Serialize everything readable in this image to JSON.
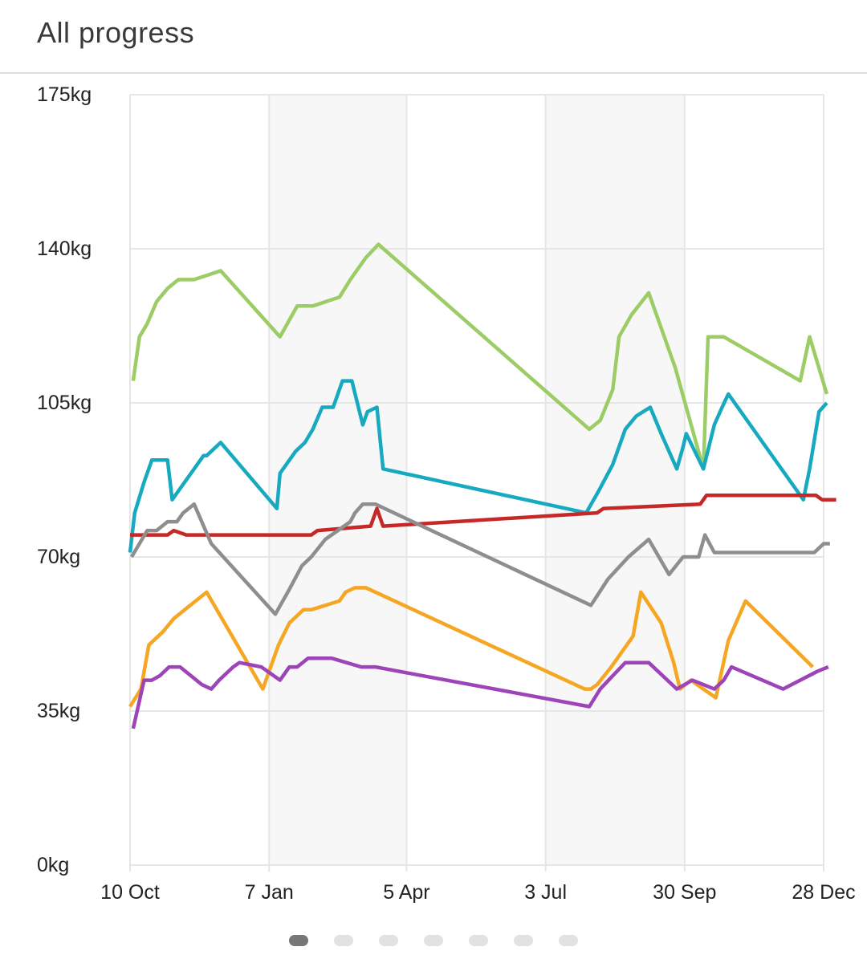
{
  "header": {
    "title": "All progress"
  },
  "chart_data": {
    "type": "line",
    "ylim": [
      0,
      175
    ],
    "y_ticks": [
      {
        "value": 0,
        "label": "0kg"
      },
      {
        "value": 35,
        "label": "35kg"
      },
      {
        "value": 70,
        "label": "70kg"
      },
      {
        "value": 105,
        "label": "105kg"
      },
      {
        "value": 140,
        "label": "140kg"
      },
      {
        "value": 175,
        "label": "175kg"
      }
    ],
    "xlim": [
      "2021-10-10",
      "2022-12-28"
    ],
    "x_ticks": [
      {
        "value": "2021-10-10",
        "label": "10 Oct"
      },
      {
        "value": "2022-01-07",
        "label": "7 Jan"
      },
      {
        "value": "2022-04-05",
        "label": "5 Apr"
      },
      {
        "value": "2022-07-03",
        "label": "3 Jul"
      },
      {
        "value": "2022-09-30",
        "label": "30 Sep"
      },
      {
        "value": "2022-12-28",
        "label": "28 Dec"
      }
    ],
    "shaded_bands": [
      [
        "2022-01-07",
        "2022-04-05"
      ],
      [
        "2022-07-03",
        "2022-09-30"
      ]
    ],
    "grid": true,
    "series": [
      {
        "color": "#9ccc65",
        "x": [
          "2021-10-12",
          "2021-10-16",
          "2021-10-21",
          "2021-10-27",
          "2021-11-03",
          "2021-11-10",
          "2021-11-20",
          "2021-12-07",
          "2022-01-14",
          "2022-01-25",
          "2022-02-04",
          "2022-02-21",
          "2022-02-28",
          "2022-03-10",
          "2022-03-18",
          "2022-07-31",
          "2022-08-07",
          "2022-08-15",
          "2022-08-19",
          "2022-08-27",
          "2022-09-07",
          "2022-09-24",
          "2022-10-12",
          "2022-10-15",
          "2022-10-25",
          "2022-12-13",
          "2022-12-19",
          "2022-12-30"
        ],
        "y": [
          110,
          120,
          123,
          128,
          131,
          133,
          133,
          135,
          120,
          127,
          127,
          129,
          133,
          138,
          141,
          99,
          101,
          108,
          120,
          125,
          130,
          113,
          90,
          120,
          120,
          110,
          120,
          107
        ]
      },
      {
        "color": "#17a9c0",
        "x": [
          "2021-10-10",
          "2021-10-13",
          "2021-10-19",
          "2021-10-24",
          "2021-11-03",
          "2021-11-06",
          "2021-11-12",
          "2021-11-20",
          "2021-11-26",
          "2021-11-28",
          "2021-12-07",
          "2022-01-12",
          "2022-01-14",
          "2022-01-24",
          "2022-01-30",
          "2022-02-04",
          "2022-02-10",
          "2022-02-17",
          "2022-02-23",
          "2022-03-01",
          "2022-03-08",
          "2022-03-11",
          "2022-03-17",
          "2022-03-21",
          "2022-07-29",
          "2022-08-06",
          "2022-08-15",
          "2022-08-19",
          "2022-08-23",
          "2022-08-30",
          "2022-09-08",
          "2022-09-15",
          "2022-09-25",
          "2022-09-29",
          "2022-10-01",
          "2022-10-12",
          "2022-10-19",
          "2022-10-24",
          "2022-10-28",
          "2022-12-15",
          "2022-12-19",
          "2022-12-25",
          "2022-12-30"
        ],
        "y": [
          71,
          80,
          87,
          92,
          92,
          83,
          86,
          90,
          93,
          93,
          96,
          81,
          89,
          94,
          96,
          99,
          104,
          104,
          110,
          110,
          100,
          103,
          104,
          90,
          80,
          85,
          91,
          95,
          99,
          102,
          104,
          98,
          90,
          95,
          98,
          90,
          100,
          104,
          107,
          83,
          90,
          103,
          105
        ]
      },
      {
        "color": "#c62828",
        "x": [
          "2021-10-10",
          "2021-10-15",
          "2021-11-03",
          "2021-11-07",
          "2021-11-15",
          "2021-11-19",
          "2021-12-07",
          "2022-01-07",
          "2022-02-03",
          "2022-02-07",
          "2022-03-13",
          "2022-03-17",
          "2022-03-21",
          "2022-08-05",
          "2022-08-09",
          "2022-10-10",
          "2022-10-14",
          "2022-12-23",
          "2022-12-27",
          "2023-01-05"
        ],
        "y": [
          75,
          75,
          75,
          76,
          75,
          75,
          75,
          75,
          75,
          76,
          77,
          81,
          77,
          80,
          81,
          82,
          84,
          84,
          83,
          83
        ]
      },
      {
        "color": "#8e8e8e",
        "x": [
          "2021-10-11",
          "2021-10-21",
          "2021-10-27",
          "2021-11-03",
          "2021-11-09",
          "2021-11-13",
          "2021-11-20",
          "2021-12-01",
          "2022-01-11",
          "2022-01-19",
          "2022-01-28",
          "2022-02-03",
          "2022-02-12",
          "2022-02-28",
          "2022-03-03",
          "2022-03-08",
          "2022-03-10",
          "2022-03-16",
          "2022-08-01",
          "2022-08-12",
          "2022-08-25",
          "2022-09-07",
          "2022-09-20",
          "2022-09-29",
          "2022-10-09",
          "2022-10-13",
          "2022-10-19",
          "2022-12-22",
          "2022-12-28",
          "2023-01-01"
        ],
        "y": [
          70,
          76,
          76,
          78,
          78,
          80,
          82,
          73,
          57,
          62,
          68,
          70,
          74,
          78,
          80,
          82,
          82,
          82,
          59,
          65,
          70,
          74,
          66,
          70,
          70,
          75,
          71,
          71,
          73,
          73
        ]
      },
      {
        "color": "#f5a623",
        "x": [
          "2021-10-10",
          "2021-10-17",
          "2021-10-22",
          "2021-10-31",
          "2021-11-07",
          "2021-11-14",
          "2021-11-28",
          "2022-01-03",
          "2022-01-13",
          "2022-01-20",
          "2022-01-29",
          "2022-02-03",
          "2022-02-21",
          "2022-02-25",
          "2022-03-03",
          "2022-03-10",
          "2022-07-28",
          "2022-08-01",
          "2022-08-05",
          "2022-08-14",
          "2022-08-28",
          "2022-09-02",
          "2022-09-15",
          "2022-09-23",
          "2022-09-27",
          "2022-10-04",
          "2022-10-12",
          "2022-10-20",
          "2022-10-28",
          "2022-11-08",
          "2022-12-21"
        ],
        "y": [
          36,
          40,
          50,
          53,
          56,
          58,
          62,
          40,
          50,
          55,
          58,
          58,
          60,
          62,
          63,
          63,
          40,
          40,
          41,
          45,
          52,
          62,
          55,
          46,
          40,
          42,
          40,
          38,
          51,
          60,
          45
        ]
      },
      {
        "color": "#9c44b8",
        "x": [
          "2021-10-12",
          "2021-10-19",
          "2021-10-24",
          "2021-10-29",
          "2021-11-04",
          "2021-11-11",
          "2021-11-25",
          "2021-12-01",
          "2021-12-06",
          "2021-12-15",
          "2021-12-19",
          "2022-01-02",
          "2022-01-14",
          "2022-01-20",
          "2022-01-25",
          "2022-02-01",
          "2022-02-14",
          "2022-02-16",
          "2022-03-07",
          "2022-03-16",
          "2022-07-31",
          "2022-08-07",
          "2022-08-15",
          "2022-08-23",
          "2022-08-27",
          "2022-09-07",
          "2022-09-25",
          "2022-10-05",
          "2022-10-19",
          "2022-10-25",
          "2022-10-30",
          "2022-12-02",
          "2022-12-24",
          "2022-12-31"
        ],
        "y": [
          31,
          42,
          42,
          43,
          45,
          45,
          41,
          40,
          42,
          45,
          46,
          45,
          42,
          45,
          45,
          47,
          47,
          47,
          45,
          45,
          36,
          40,
          43,
          46,
          46,
          46,
          40,
          42,
          40,
          42,
          45,
          40,
          44,
          45
        ]
      }
    ]
  },
  "pager": {
    "count": 7,
    "active": 0
  }
}
